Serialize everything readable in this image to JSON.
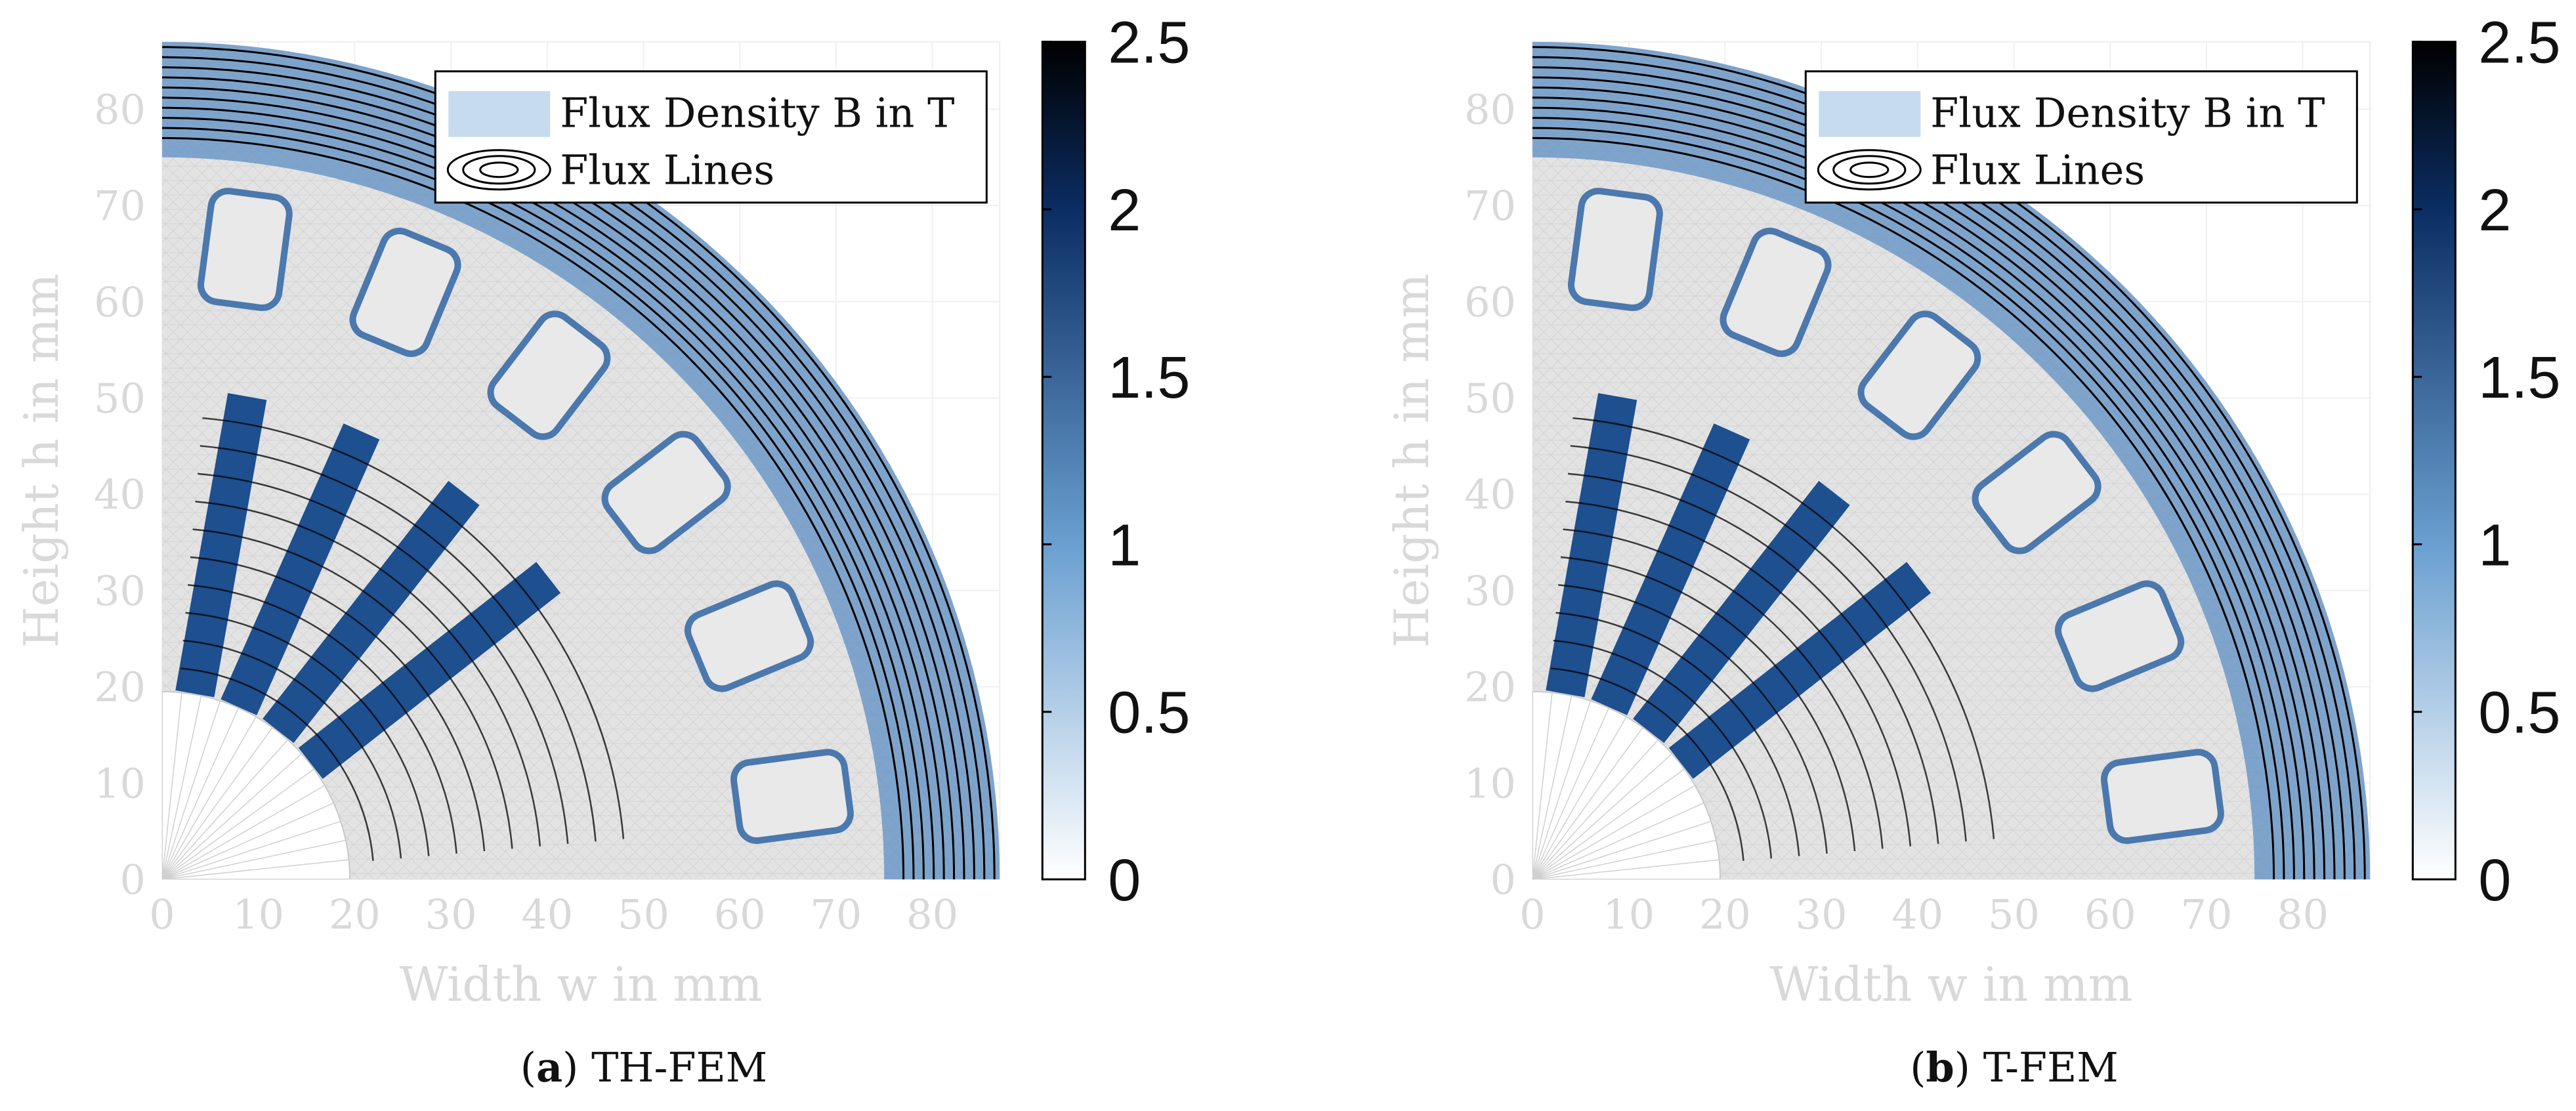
{
  "chart_data": [
    {
      "type": "heatmap",
      "panel_label": "a",
      "caption": "TH-FEM",
      "xlabel": "Width w in mm",
      "ylabel": "Height h in mm",
      "xlim": [
        0,
        87
      ],
      "ylim": [
        0,
        87
      ],
      "xticks": [
        0,
        10,
        20,
        30,
        40,
        50,
        60,
        70,
        80
      ],
      "yticks": [
        0,
        10,
        20,
        30,
        40,
        50,
        60,
        70,
        80
      ],
      "colorbar": {
        "min": 0,
        "max": 2.5,
        "ticks": [
          0,
          0.5,
          1,
          1.5,
          2,
          2.5
        ],
        "colormap": "white-to-dark-blue"
      },
      "legend": {
        "position": "top-right",
        "entries": [
          "Flux Density B in T",
          "Flux Lines"
        ]
      },
      "grid": true,
      "geometry": {
        "rotor_outer_radius": 51,
        "stator_outer_radius": 87,
        "shaft_radius": 19.5,
        "rotor_teeth_angles_deg": [
          80,
          66,
          52,
          38
        ],
        "stator_slots": 6
      },
      "flux_line_count": 10
    },
    {
      "type": "heatmap",
      "panel_label": "b",
      "caption": "T-FEM",
      "xlabel": "Width w in mm",
      "ylabel": "Height h in mm",
      "xlim": [
        0,
        87
      ],
      "ylim": [
        0,
        87
      ],
      "xticks": [
        0,
        10,
        20,
        30,
        40,
        50,
        60,
        70,
        80
      ],
      "yticks": [
        0,
        10,
        20,
        30,
        40,
        50,
        60,
        70,
        80
      ],
      "colorbar": {
        "min": 0,
        "max": 2.5,
        "ticks": [
          0,
          0.5,
          1,
          1.5,
          2,
          2.5
        ],
        "colormap": "white-to-dark-blue"
      },
      "legend": {
        "position": "top-right",
        "entries": [
          "Flux Density B in T",
          "Flux Lines"
        ]
      },
      "grid": true,
      "geometry": {
        "rotor_outer_radius": 51,
        "stator_outer_radius": 87,
        "shaft_radius": 19.5,
        "rotor_teeth_angles_deg": [
          80,
          66,
          52,
          38
        ],
        "stator_slots": 6
      },
      "flux_line_count": 10
    }
  ],
  "colors": {
    "axis_text": "#d9d9d9",
    "gray_region": "#e3e3e3",
    "mesh": "#c9c9c9",
    "flux_line": "#000000",
    "cmap_low": "#ffffff",
    "cmap_mid": "#6a9fd0",
    "cmap_high": "#0b2d63",
    "cmap_top": "#000000"
  }
}
